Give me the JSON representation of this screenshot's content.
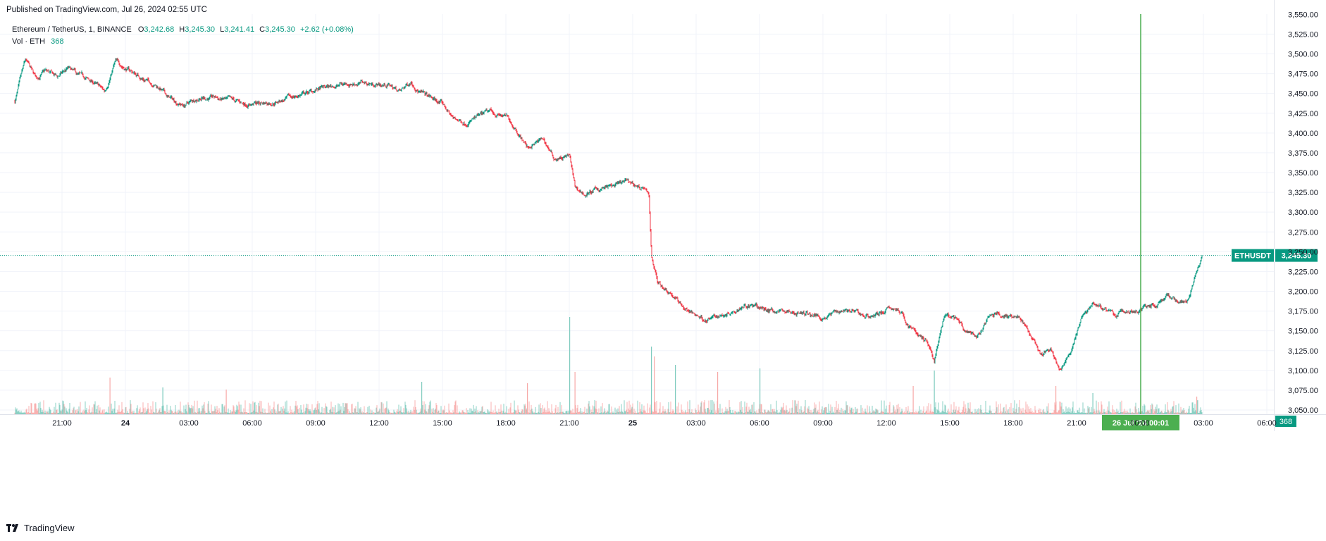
{
  "header": {
    "published": "Published on TradingView.com, Jul 26, 2024 02:55 UTC"
  },
  "legend": {
    "symbol": "Ethereum / TetherUS, 1, BINANCE",
    "o_label": "O",
    "o_value": "3,242.68",
    "h_label": "H",
    "h_value": "3,245.30",
    "l_label": "L",
    "l_value": "3,241.41",
    "c_label": "C",
    "c_value": "3,245.30",
    "change": "+2.62 (+0.08%)",
    "vol_label": "Vol · ETH",
    "vol_value": "368"
  },
  "footer": {
    "brand": "TradingView"
  },
  "colors": {
    "up": "#089981",
    "down": "#F23645",
    "crosshair": "#4CAF50",
    "grid": "#F0F3FA",
    "text": "#131722"
  },
  "chart_data": {
    "type": "candlestick",
    "symbol": "ETHUSDT",
    "interval": "1",
    "price_axis": {
      "ticks": [
        "3,525.00",
        "3,500.00",
        "3,475.00",
        "3,450.00",
        "3,425.00",
        "3,400.00",
        "3,375.00",
        "3,350.00",
        "3,325.00",
        "3,300.00",
        "3,275.00",
        "3,250.00",
        "3,225.00",
        "3,200.00",
        "3,175.00",
        "3,150.00",
        "3,125.00",
        "3,100.00",
        "3,075.00",
        "3,050.00"
      ],
      "range": [
        3046,
        3552
      ]
    },
    "time_axis": {
      "ticks": [
        "21:00",
        "24",
        "03:00",
        "06:00",
        "09:00",
        "12:00",
        "15:00",
        "18:00",
        "21:00",
        "25",
        "03:00",
        "06:00",
        "09:00",
        "12:00",
        "15:00",
        "18:00",
        "21:00",
        "00:00",
        "03:00",
        "06:00"
      ],
      "bold_ticks": [
        "24",
        "25"
      ]
    },
    "current_price": {
      "label": "ETHUSDT",
      "value": "3,245.30"
    },
    "volume_last": "368",
    "crosshair": {
      "time_label": "26 Jul '24  00:01"
    },
    "close_path": [
      [
        "23 18:45",
        3440
      ],
      [
        "23 19:15",
        3490
      ],
      [
        "23 19:45",
        3468
      ],
      [
        "23 20:10",
        3478
      ],
      [
        "23 20:45",
        3470
      ],
      [
        "23 21:15",
        3481
      ],
      [
        "23 21:45",
        3472
      ],
      [
        "23 22:30",
        3463
      ],
      [
        "23 23:00",
        3452
      ],
      [
        "23 23:30",
        3490
      ],
      [
        "24 00:15",
        3478
      ],
      [
        "24 00:45",
        3470
      ],
      [
        "24 01:30",
        3460
      ],
      [
        "24 02:00",
        3445
      ],
      [
        "24 02:45",
        3435
      ],
      [
        "24 03:30",
        3446
      ],
      [
        "24 04:15",
        3444
      ],
      [
        "24 04:45",
        3441
      ],
      [
        "24 05:30",
        3437
      ],
      [
        "24 06:30",
        3438
      ],
      [
        "24 07:30",
        3442
      ],
      [
        "24 08:15",
        3448
      ],
      [
        "24 09:00",
        3454
      ],
      [
        "24 10:15",
        3462
      ],
      [
        "24 11:00",
        3464
      ],
      [
        "24 11:45",
        3462
      ],
      [
        "24 12:30",
        3460
      ],
      [
        "24 13:00",
        3452
      ],
      [
        "24 13:30",
        3466
      ],
      [
        "24 14:00",
        3450
      ],
      [
        "24 15:00",
        3436
      ],
      [
        "24 15:30",
        3418
      ],
      [
        "24 16:00",
        3414
      ],
      [
        "24 16:45",
        3420
      ],
      [
        "24 17:15",
        3426
      ],
      [
        "24 18:00",
        3420
      ],
      [
        "24 18:30",
        3405
      ],
      [
        "24 19:00",
        3382
      ],
      [
        "24 19:45",
        3392
      ],
      [
        "24 20:15",
        3368
      ],
      [
        "24 21:00",
        3370
      ],
      [
        "24 21:15",
        3330
      ],
      [
        "24 21:45",
        3322
      ],
      [
        "24 22:30",
        3330
      ],
      [
        "24 23:15",
        3333
      ],
      [
        "24 23:45",
        3338
      ],
      [
        "25 00:30",
        3330
      ],
      [
        "25 00:45",
        3318
      ],
      [
        "25 00:52",
        3246
      ],
      [
        "25 01:10",
        3212
      ],
      [
        "25 01:45",
        3200
      ],
      [
        "25 02:15",
        3184
      ],
      [
        "25 02:45",
        3172
      ],
      [
        "25 03:30",
        3164
      ],
      [
        "25 04:00",
        3168
      ],
      [
        "25 04:45",
        3177
      ],
      [
        "25 05:15",
        3185
      ],
      [
        "25 06:00",
        3178
      ],
      [
        "25 07:00",
        3175
      ],
      [
        "25 08:00",
        3172
      ],
      [
        "25 09:00",
        3168
      ],
      [
        "25 10:00",
        3178
      ],
      [
        "25 11:00",
        3168
      ],
      [
        "25 12:00",
        3176
      ],
      [
        "25 12:30",
        3178
      ],
      [
        "25 13:00",
        3158
      ],
      [
        "25 13:30",
        3145
      ],
      [
        "25 14:00",
        3132
      ],
      [
        "25 14:15",
        3112
      ],
      [
        "25 14:45",
        3168
      ],
      [
        "25 15:15",
        3164
      ],
      [
        "25 15:45",
        3148
      ],
      [
        "25 16:15",
        3140
      ],
      [
        "25 16:45",
        3163
      ],
      [
        "25 17:15",
        3172
      ],
      [
        "25 17:45",
        3170
      ],
      [
        "25 18:15",
        3168
      ],
      [
        "25 18:45",
        3145
      ],
      [
        "25 19:15",
        3118
      ],
      [
        "25 19:45",
        3124
      ],
      [
        "25 20:15",
        3098
      ],
      [
        "25 20:45",
        3128
      ],
      [
        "25 21:15",
        3168
      ],
      [
        "25 21:45",
        3186
      ],
      [
        "25 22:15",
        3178
      ],
      [
        "25 22:45",
        3170
      ],
      [
        "25 23:15",
        3174
      ],
      [
        "25 23:45",
        3176
      ],
      [
        "26 00:15",
        3180
      ],
      [
        "26 00:45",
        3185
      ],
      [
        "26 01:15",
        3195
      ],
      [
        "26 01:45",
        3184
      ],
      [
        "26 02:15",
        3192
      ],
      [
        "26 02:35",
        3220
      ],
      [
        "26 02:55",
        3245.3
      ]
    ],
    "volume_spikes": [
      [
        "23 23:15",
        52
      ],
      [
        "24 01:45",
        38
      ],
      [
        "24 04:45",
        35
      ],
      [
        "24 14:00",
        46
      ],
      [
        "24 19:00",
        44
      ],
      [
        "24 21:00",
        138
      ],
      [
        "24 21:15",
        60
      ],
      [
        "25 00:52",
        96
      ],
      [
        "25 01:00",
        82
      ],
      [
        "25 02:00",
        70
      ],
      [
        "25 04:00",
        60
      ],
      [
        "25 06:00",
        65
      ],
      [
        "25 13:15",
        40
      ],
      [
        "25 14:15",
        62
      ],
      [
        "25 20:00",
        40
      ],
      [
        "25 21:45",
        30
      ],
      [
        "26 02:40",
        25
      ]
    ]
  }
}
